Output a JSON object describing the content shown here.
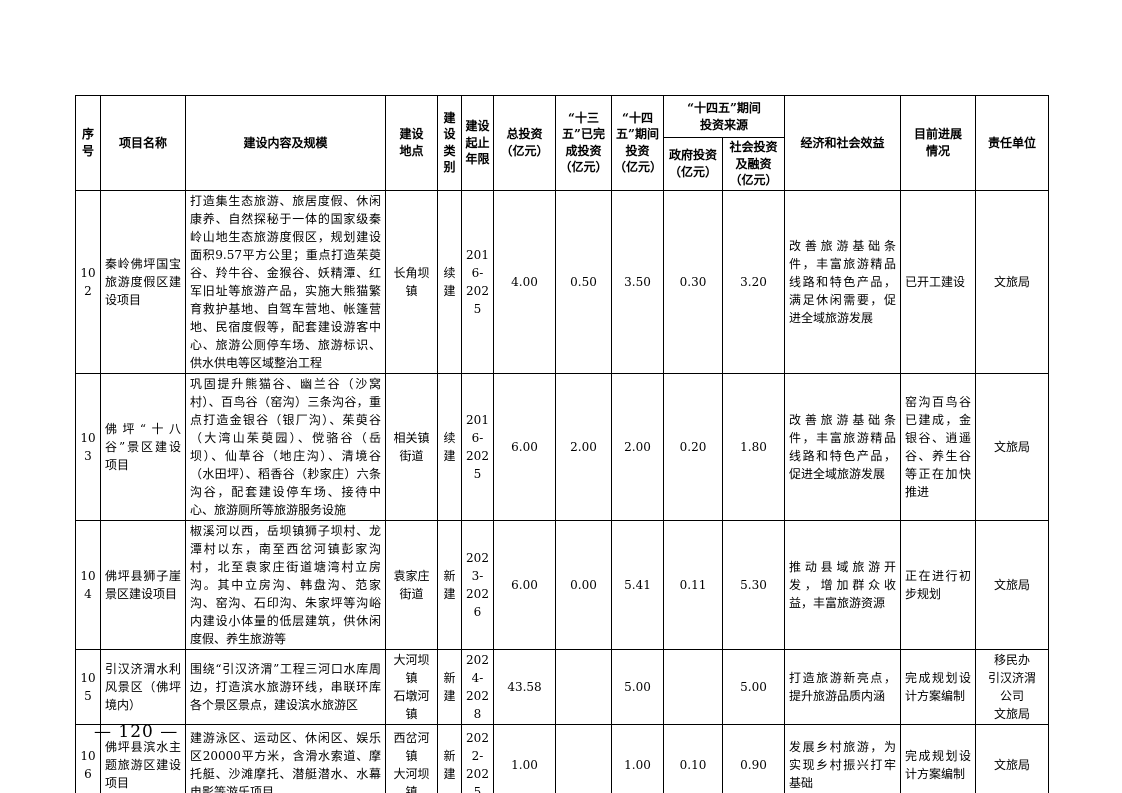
{
  "page": {
    "number": "— 120 —"
  },
  "table": {
    "headers": {
      "no": "序号",
      "name": "项目名称",
      "content": "建设内容及规模",
      "location": "建设\n地点",
      "category": "建设类别",
      "years": "建设\n起止\n年限",
      "total": "总投资\n（亿元）",
      "completed_13th": "“十三五”已完成投资（亿元）",
      "invest_14th": "“十四五”期间投资（亿元）",
      "source_group": "“十四五”期间\n投资来源",
      "gov": "政府投资（亿元）",
      "social": "社会投资及融资（亿元）",
      "benefit": "经济和社会效益",
      "progress": "目前进展\n情况",
      "unit": "责任单位"
    },
    "rows": [
      {
        "no": "102",
        "name": "秦岭佛坪国宝旅游度假区建设项目",
        "content": "打造集生态旅游、旅居度假、休闲康养、自然探秘于一体的国家级秦岭山地生态旅游度假区，规划建设面积9.57平方公里；重点打造茱萸谷、羚牛谷、金猴谷、妖精潭、红军旧址等旅游产品，实施大熊猫繁育救护基地、自驾车营地、帐篷营地、民宿度假等，配套建设游客中心、旅游公厕停车场、旅游标识、供水供电等区域整治工程",
        "location": "长角坝镇",
        "category": "续建",
        "years": "2016-\n2025",
        "total": "4.00",
        "completed_13th": "0.50",
        "invest_14th": "3.50",
        "gov": "0.30",
        "social": "3.20",
        "benefit": "改善旅游基础条件，丰富旅游精品线路和特色产品，满足休闲需要，促进全域旅游发展",
        "progress": "已开工建设",
        "unit": "文旅局"
      },
      {
        "no": "103",
        "name": "佛坪“十八谷”景区建设项目",
        "content": "巩固提升熊猫谷、幽兰谷（沙窝村）、百鸟谷（窑沟）三条沟谷，重点打造金银谷（银厂沟）、茱萸谷（大湾山茱萸园）、傥骆谷（岳坝）、仙草谷（地庄沟）、清境谷（水田坪）、稻香谷（耖家庄）六条沟谷，配套建设停车场、接待中心、旅游厕所等旅游服务设施",
        "location": "相关镇\n街道",
        "category": "续建",
        "years": "2016-\n2025",
        "total": "6.00",
        "completed_13th": "2.00",
        "invest_14th": "2.00",
        "gov": "0.20",
        "social": "1.80",
        "benefit": "改善旅游基础条件，丰富旅游精品线路和特色产品，促进全域旅游发展",
        "progress": "窑沟百鸟谷已建成，金银谷、逍遥谷、养生谷等正在加快推进",
        "unit": "文旅局"
      },
      {
        "no": "104",
        "name": "佛坪县狮子崖景区建设项目",
        "content": "椒溪河以西，岳坝镇狮子坝村、龙潭村以东，南至西岔河镇彭家沟村，北至袁家庄街道塘湾村立房沟。其中立房沟、韩盘沟、范家沟、窑沟、石印沟、朱家坪等沟峪内建设小体量的低层建筑，供休闲度假、养生旅游等",
        "location": "袁家庄\n街道",
        "category": "新建",
        "years": "2023-\n2026",
        "total": "6.00",
        "completed_13th": "0.00",
        "invest_14th": "5.41",
        "gov": "0.11",
        "social": "5.30",
        "benefit": "推动县域旅游开发，增加群众收益，丰富旅游资源",
        "progress": "正在进行初步规划",
        "unit": "文旅局"
      },
      {
        "no": "105",
        "name": "引汉济渭水利风景区（佛坪境内）",
        "content": "围绕“引汉济渭”工程三河口水库周边，打造滨水旅游环线，串联环库各个景区景点，建设滨水旅游区",
        "location": "大河坝镇\n石墩河镇",
        "category": "新建",
        "years": "2024-\n2028",
        "total": "43.58",
        "completed_13th": "",
        "invest_14th": "5.00",
        "gov": "",
        "social": "5.00",
        "benefit": "打造旅游新亮点，提升旅游品质内涵",
        "progress": "完成规划设计方案编制",
        "unit": "移民办\n引汉济渭\n公司\n文旅局"
      },
      {
        "no": "106",
        "name": "佛坪县滨水主题旅游区建设项目",
        "content": "建游泳区、运动区、休闲区、娱乐区20000平方米，含滑水索道、摩托艇、沙滩摩托、潜艇潜水、水幕电影等游乐项目",
        "location": "西岔河镇\n大河坝镇",
        "category": "新建",
        "years": "2022-\n2025",
        "total": "1.00",
        "completed_13th": "",
        "invest_14th": "1.00",
        "gov": "0.10",
        "social": "0.90",
        "benefit": "发展乡村旅游，为实现乡村振兴打牢基础",
        "progress": "完成规划设计方案编制",
        "unit": "文旅局"
      }
    ]
  }
}
